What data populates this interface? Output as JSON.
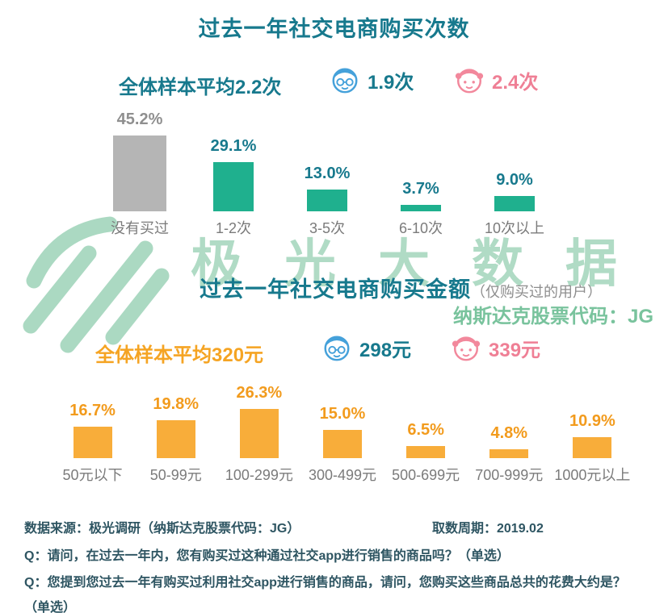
{
  "page": {
    "title1": "过去一年社交电商购买次数",
    "title2": "过去一年社交电商购买金额",
    "title2_note": "（仅购买过的用户）"
  },
  "icons": {
    "male": "boy-face-icon",
    "female": "girl-face-icon"
  },
  "averages1": {
    "overall": "全体样本平均2.2次",
    "male": "1.9次",
    "female": "2.4次"
  },
  "averages2": {
    "overall": "全体样本平均320元",
    "male": "298元",
    "female": "339元"
  },
  "watermark": {
    "brand": "极光大数据",
    "ticker": "纳斯达克股票代码：JG"
  },
  "footer": {
    "source": "数据来源：极光调研（纳斯达克股票代码：JG）",
    "period": "取数周期：2019.02",
    "q1": "Q：请问，在过去一年内，您有购买过这种通过社交app进行销售的商品吗？（单选）",
    "q2": "Q：您提到您过去一年有购买过利用社交app进行销售的商品，请问，您购买这些商品总共的花费大约是？（单选）"
  },
  "colors": {
    "title_teal": "#17798d",
    "bar_green": "#1fb08e",
    "bar_gray": "#b5b5b5",
    "gray_label": "#8f8f8f",
    "orange_bar": "#f8ad3a",
    "orange_label": "#f29b1d",
    "orange_text": "#f5a423",
    "male_blue": "#45a1da",
    "female_pink": "#f2889c",
    "pink_text": "#ef7f95",
    "watermark_green": "#5ab487",
    "footer_text": "#2e5562",
    "category_gray": "#7b7b7b"
  },
  "chart_data": [
    {
      "type": "bar",
      "title": "过去一年社交电商购买次数",
      "categories": [
        "没有买过",
        "1-2次",
        "3-5次",
        "6-10次",
        "10次以上"
      ],
      "values": [
        45.2,
        29.1,
        13.0,
        3.7,
        9.0
      ],
      "labels": [
        "45.2%",
        "29.1%",
        "13.0%",
        "3.7%",
        "9.0%"
      ],
      "unit": "%",
      "ylim": [
        0,
        50
      ],
      "grid": false,
      "legend": false,
      "bar_colors": [
        "#b5b5b5",
        "#1fb08e",
        "#1fb08e",
        "#1fb08e",
        "#1fb08e"
      ],
      "label_colors": [
        "#8f8f8f",
        "#17798d",
        "#17798d",
        "#17798d",
        "#17798d"
      ],
      "overall_average": "2.2次",
      "male_average": "1.9次",
      "female_average": "2.4次"
    },
    {
      "type": "bar",
      "title": "过去一年社交电商购买金额",
      "subtitle": "（仅购买过的用户）",
      "categories": [
        "50元以下",
        "50-99元",
        "100-299元",
        "300-499元",
        "500-699元",
        "700-999元",
        "1000元以上"
      ],
      "values": [
        16.7,
        19.8,
        26.3,
        15.0,
        6.5,
        4.8,
        10.9
      ],
      "labels": [
        "16.7%",
        "19.8%",
        "26.3%",
        "15.0%",
        "6.5%",
        "4.8%",
        "10.9%"
      ],
      "unit": "%",
      "ylim": [
        0,
        30
      ],
      "grid": false,
      "legend": false,
      "bar_colors": [
        "#f8ad3a",
        "#f8ad3a",
        "#f8ad3a",
        "#f8ad3a",
        "#f8ad3a",
        "#f8ad3a",
        "#f8ad3a"
      ],
      "label_colors": [
        "#f29b1d",
        "#f29b1d",
        "#f29b1d",
        "#f29b1d",
        "#f29b1d",
        "#f29b1d",
        "#f29b1d"
      ],
      "overall_average": "320元",
      "male_average": "298元",
      "female_average": "339元"
    }
  ]
}
